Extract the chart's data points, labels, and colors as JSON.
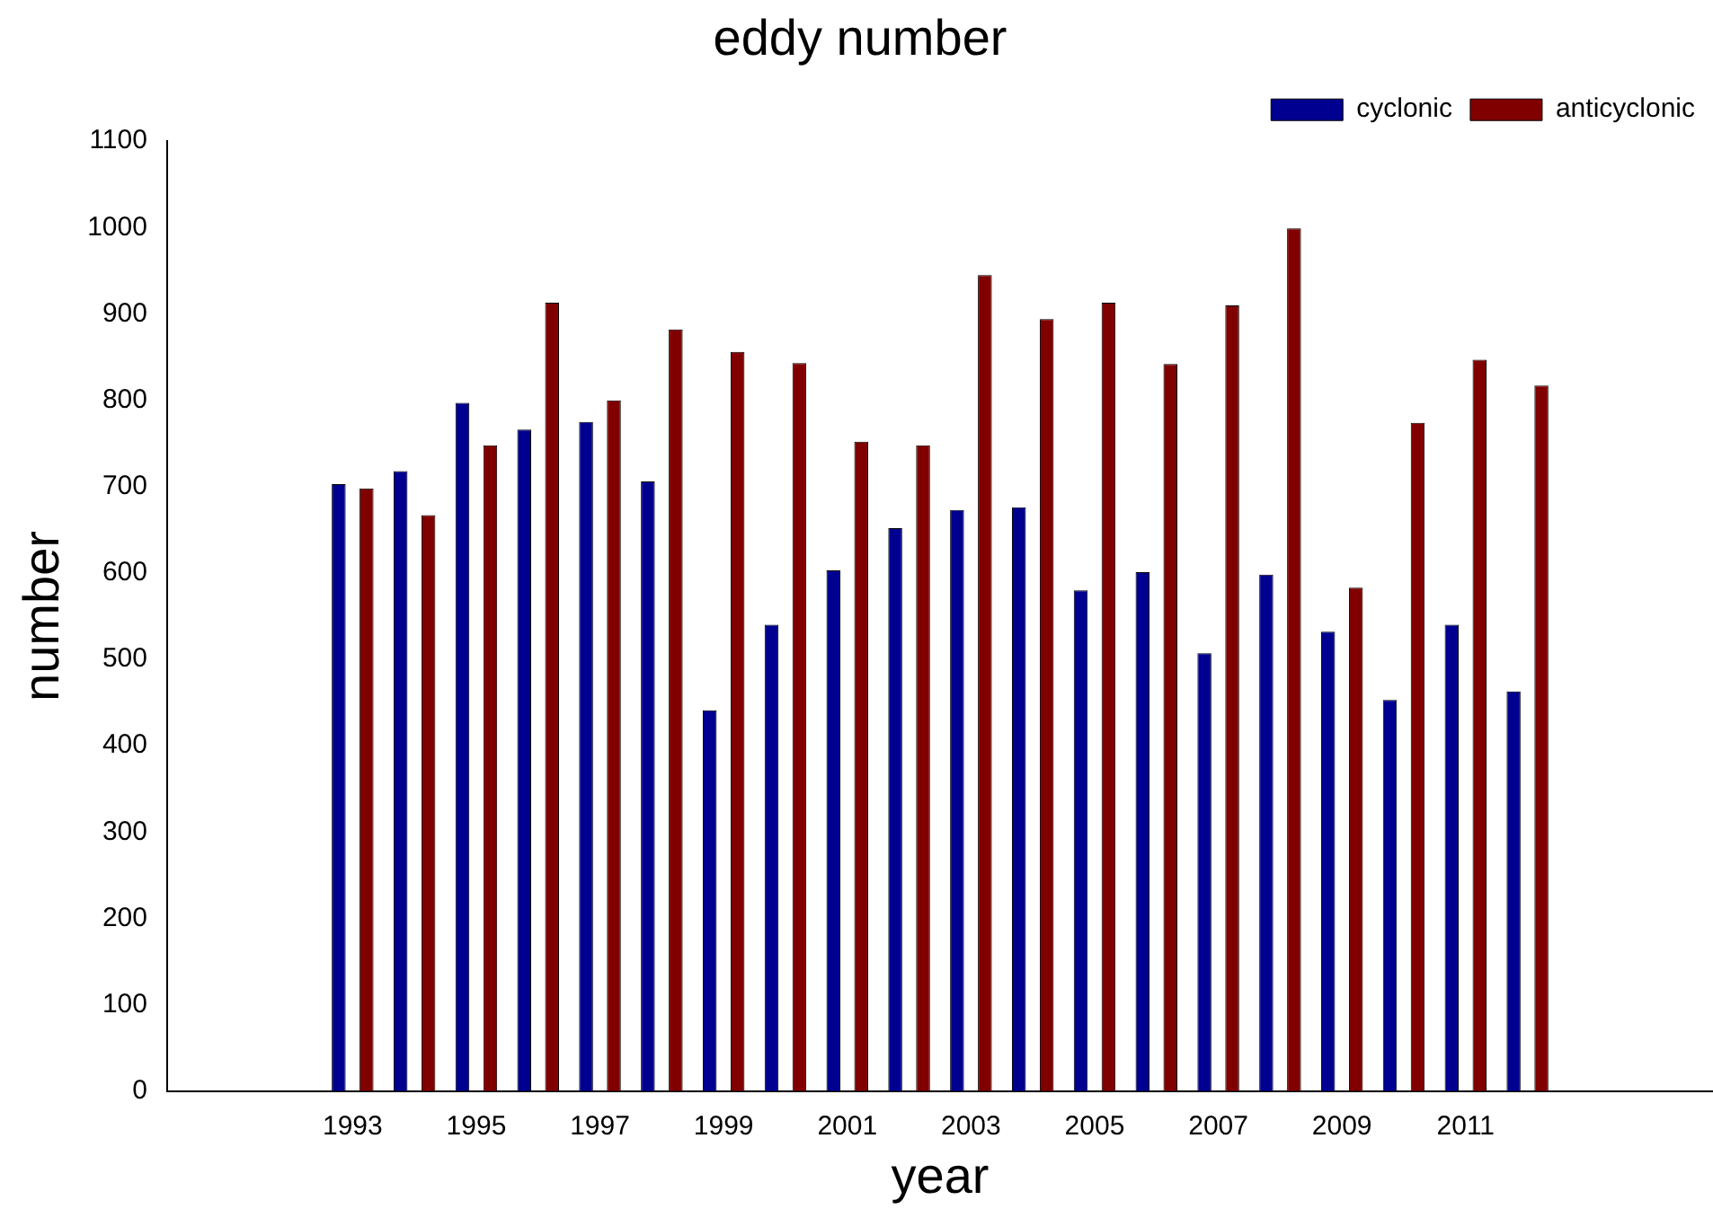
{
  "chart_data": {
    "type": "bar",
    "title": "eddy number",
    "xlabel": "year",
    "ylabel": "number",
    "x": [
      1993,
      1994,
      1995,
      1996,
      1997,
      1998,
      1999,
      2000,
      2001,
      2002,
      2003,
      2004,
      2005,
      2006,
      2007,
      2008,
      2009,
      2010,
      2011,
      2012
    ],
    "series": [
      {
        "name": "cyclonic",
        "color": "#000090",
        "values": [
          703,
          718,
          797,
          766,
          775,
          706,
          441,
          540,
          603,
          652,
          673,
          676,
          580,
          601,
          507,
          598,
          532,
          453,
          540,
          463
        ]
      },
      {
        "name": "anticyclonic",
        "color": "#800000",
        "values": [
          698,
          667,
          748,
          913,
          800,
          882,
          856,
          843,
          752,
          748,
          945,
          894,
          913,
          842,
          910,
          999,
          583,
          774,
          847,
          817
        ]
      }
    ],
    "xlim": [
      1990,
      2015
    ],
    "xticks": [
      1993,
      1995,
      1997,
      1999,
      2001,
      2003,
      2005,
      2007,
      2009,
      2011
    ],
    "ylim": [
      0,
      1100
    ],
    "yticks": [
      0,
      100,
      200,
      300,
      400,
      500,
      600,
      700,
      800,
      900,
      1000,
      1100
    ],
    "grid": false,
    "legend": "top right"
  }
}
